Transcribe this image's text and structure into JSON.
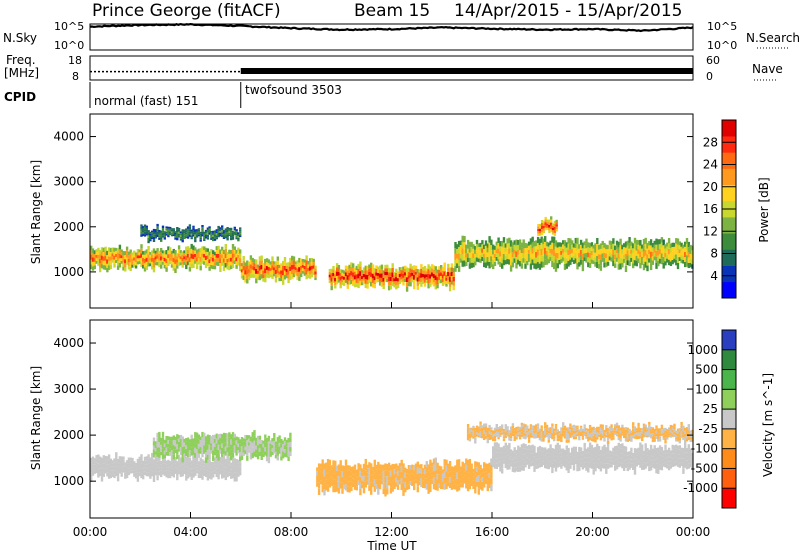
{
  "header": {
    "station": "Prince George (fitACF)",
    "beam": "Beam 15",
    "date_range": "14/Apr/2015 - 15/Apr/2015"
  },
  "strips": {
    "nsky": {
      "label": "N.Sky",
      "ticks": [
        "10^5",
        "10^0"
      ]
    },
    "nsearch": {
      "label": "N.Search",
      "ticks": [
        "10^5",
        "10^0"
      ]
    },
    "freq": {
      "label_line1": "Freq.",
      "label_line2": "[MHz]",
      "ticks": [
        "18",
        "8"
      ]
    },
    "nave": {
      "label": "Nave",
      "ticks": [
        "60",
        "0"
      ]
    },
    "cpid": {
      "label": "CPID",
      "segments": [
        "normal (fast) 151",
        "twofsound 3503"
      ],
      "switch_hour": 6.0
    }
  },
  "x_axis": {
    "label": "Time UT",
    "ticks": [
      "00:00",
      "04:00",
      "08:00",
      "12:00",
      "16:00",
      "20:00",
      "00:00"
    ]
  },
  "y_axis_label": "Slant Range [km]",
  "y_ticks": [
    "1000",
    "2000",
    "3000",
    "4000"
  ],
  "power_bar": {
    "label": "Power [dB]",
    "ticks": [
      "4",
      "8",
      "12",
      "16",
      "20",
      "24",
      "28"
    ],
    "colors": [
      "#0000ff",
      "#0a34b8",
      "#1f6b5a",
      "#3c8c3c",
      "#7cb342",
      "#c8d830",
      "#ffd21f",
      "#ff9a1f",
      "#ff6a12",
      "#ff2a10",
      "#e00000"
    ]
  },
  "velocity_bar": {
    "label": "Velocity [m s^-1]",
    "ticks": [
      "1000",
      "500",
      "100",
      "25",
      "-25",
      "-100",
      "-500",
      "-1000"
    ],
    "colors": [
      "#2a3fc0",
      "#2f8a40",
      "#4ab54a",
      "#8fd05c",
      "#c8c8c8",
      "#ffb347",
      "#ff8c1a",
      "#ff6010",
      "#ff0000"
    ]
  },
  "chart_data": [
    {
      "type": "line",
      "title": "N.Sky",
      "x_range_hours": [
        0,
        24
      ],
      "y_scale": "log",
      "y_range": [
        1,
        100000
      ],
      "x": [
        0,
        2,
        4,
        6,
        8,
        10,
        12,
        14,
        16,
        18,
        20,
        22,
        24
      ],
      "y": [
        30000,
        60000,
        80000,
        40000,
        15000,
        8000,
        10000,
        20000,
        12000,
        8000,
        10000,
        5000,
        20000
      ]
    },
    {
      "type": "line",
      "title": "Freq. [MHz]",
      "x_range_hours": [
        0,
        24
      ],
      "y_range": [
        8,
        18
      ],
      "segments": [
        {
          "x_start": 0,
          "x_end": 6,
          "value_mhz": 11.5,
          "style": "dotted"
        },
        {
          "x_start": 6,
          "x_end": 24,
          "value_mhz": 12.0,
          "style": "solid-band",
          "band_mhz": [
            10.5,
            13.0
          ]
        }
      ]
    },
    {
      "type": "heatmap",
      "title": "Power [dB]",
      "x_label": "Time UT",
      "y_label": "Slant Range [km]",
      "x_range_hours": [
        0,
        24
      ],
      "y_range_km": [
        200,
        4500
      ],
      "color_range_db": [
        0,
        30
      ],
      "echo_regions": [
        {
          "t_start": 0.0,
          "t_end": 6.0,
          "r_center_km": 1300,
          "width_km": 450,
          "power_db": 22
        },
        {
          "t_start": 2.0,
          "t_end": 6.0,
          "r_center_km": 1850,
          "width_km": 250,
          "power_db": 8
        },
        {
          "t_start": 6.0,
          "t_end": 9.0,
          "r_center_km": 1050,
          "width_km": 450,
          "power_db": 24
        },
        {
          "t_start": 9.5,
          "t_end": 14.5,
          "r_center_km": 900,
          "width_km": 450,
          "power_db": 26
        },
        {
          "t_start": 14.5,
          "t_end": 24.0,
          "r_center_km": 1400,
          "width_km": 600,
          "power_db": 18
        },
        {
          "t_start": 17.8,
          "t_end": 18.6,
          "r_center_km": 2000,
          "width_km": 300,
          "power_db": 26
        }
      ]
    },
    {
      "type": "heatmap",
      "title": "Velocity [m s^-1]",
      "x_label": "Time UT",
      "y_label": "Slant Range [km]",
      "x_range_hours": [
        0,
        24
      ],
      "y_range_km": [
        200,
        4500
      ],
      "color_range_ms": [
        -1000,
        1000
      ],
      "echo_regions": [
        {
          "t_start": 0.0,
          "t_end": 6.0,
          "r_center_km": 1300,
          "width_km": 450,
          "velocity_ms": 0
        },
        {
          "t_start": 2.5,
          "t_end": 8.0,
          "r_center_km": 1750,
          "width_km": 500,
          "velocity_ms": 150
        },
        {
          "t_start": 9.0,
          "t_end": 16.0,
          "r_center_km": 1100,
          "width_km": 600,
          "velocity_ms": -200
        },
        {
          "t_start": 16.0,
          "t_end": 24.0,
          "r_center_km": 1500,
          "width_km": 500,
          "velocity_ms": 0
        },
        {
          "t_start": 15.0,
          "t_end": 24.0,
          "r_center_km": 2050,
          "width_km": 300,
          "velocity_ms": -150
        }
      ]
    }
  ]
}
